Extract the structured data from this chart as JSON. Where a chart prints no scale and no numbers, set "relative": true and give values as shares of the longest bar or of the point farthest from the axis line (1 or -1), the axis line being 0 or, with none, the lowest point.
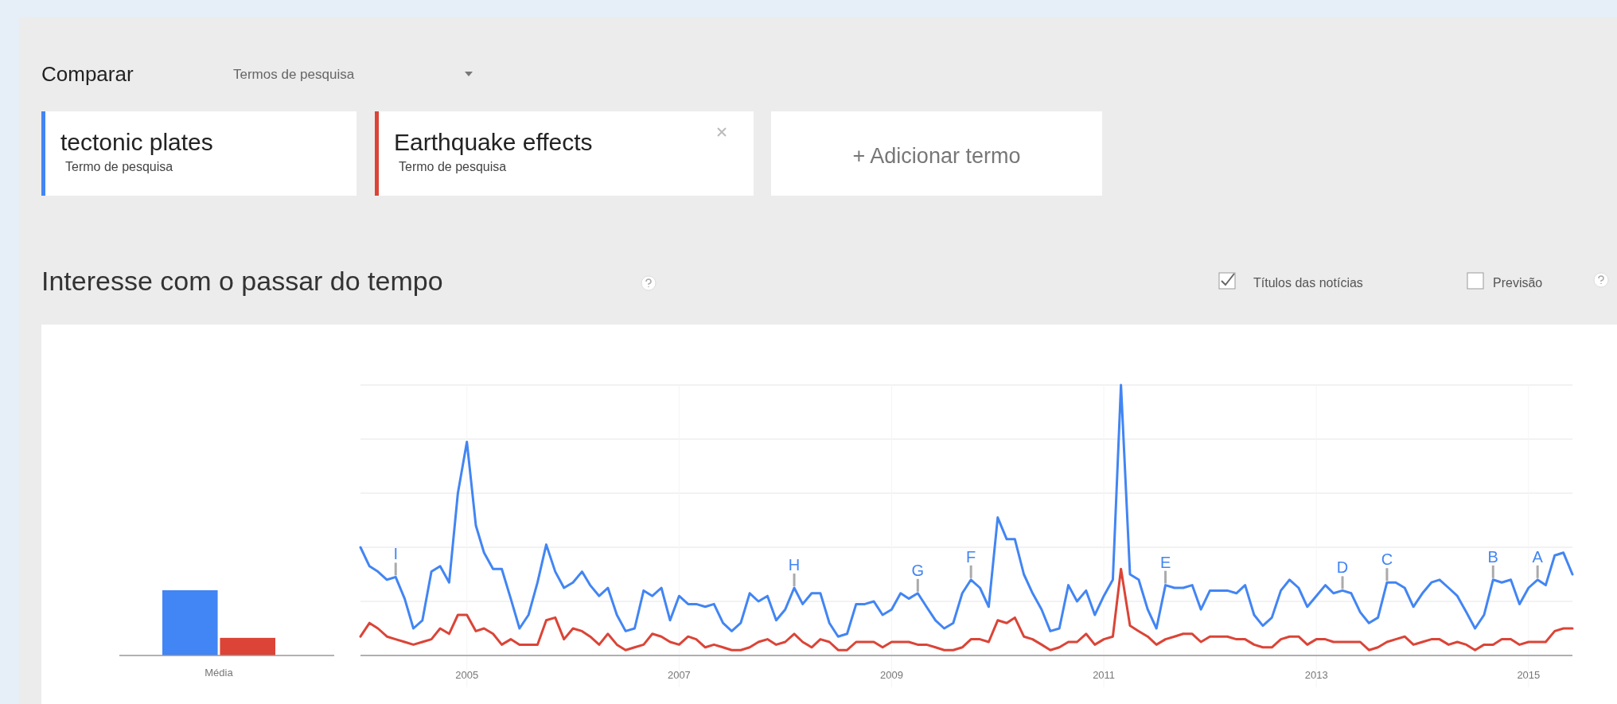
{
  "chart_data": [
    {
      "type": "line",
      "title": "Interesse com o passar do tempo",
      "relative": true,
      "grid": true,
      "legend": "top left",
      "marker": "none",
      "line_style": "solid",
      "x": [
        "2004-01",
        "2004-02",
        "2004-03",
        "2004-04",
        "2004-05",
        "2004-06",
        "2004-07",
        "2004-08",
        "2004-09",
        "2004-10",
        "2004-11",
        "2004-12",
        "2005-01",
        "2005-02",
        "2005-03",
        "2005-04",
        "2005-05",
        "2005-06",
        "2005-07",
        "2005-08",
        "2005-09",
        "2005-10",
        "2005-11",
        "2005-12",
        "2006-01",
        "2006-02",
        "2006-03",
        "2006-04",
        "2006-05",
        "2006-06",
        "2006-07",
        "2006-08",
        "2006-09",
        "2006-10",
        "2006-11",
        "2006-12",
        "2007-01",
        "2007-02",
        "2007-03",
        "2007-04",
        "2007-05",
        "2007-06",
        "2007-07",
        "2007-08",
        "2007-09",
        "2007-10",
        "2007-11",
        "2007-12",
        "2008-01",
        "2008-02",
        "2008-03",
        "2008-04",
        "2008-05",
        "2008-06",
        "2008-07",
        "2008-08",
        "2008-09",
        "2008-10",
        "2008-11",
        "2008-12",
        "2009-01",
        "2009-02",
        "2009-03",
        "2009-04",
        "2009-05",
        "2009-06",
        "2009-07",
        "2009-08",
        "2009-09",
        "2009-10",
        "2009-11",
        "2009-12",
        "2010-01",
        "2010-02",
        "2010-03",
        "2010-04",
        "2010-05",
        "2010-06",
        "2010-07",
        "2010-08",
        "2010-09",
        "2010-10",
        "2010-11",
        "2010-12",
        "2011-01",
        "2011-02",
        "2011-03",
        "2011-04",
        "2011-05",
        "2011-06",
        "2011-07",
        "2011-08",
        "2011-09",
        "2011-10",
        "2011-11",
        "2011-12",
        "2012-01",
        "2012-02",
        "2012-03",
        "2012-04",
        "2012-05",
        "2012-06",
        "2012-07",
        "2012-08",
        "2012-09",
        "2012-10",
        "2012-11",
        "2012-12",
        "2013-01",
        "2013-02",
        "2013-03",
        "2013-04",
        "2013-05",
        "2013-06",
        "2013-07",
        "2013-08",
        "2013-09",
        "2013-10",
        "2013-11",
        "2013-12",
        "2014-01",
        "2014-02",
        "2014-03",
        "2014-04",
        "2014-05",
        "2014-06",
        "2014-07",
        "2014-08",
        "2014-09",
        "2014-10",
        "2014-11",
        "2014-12",
        "2015-01",
        "2015-02",
        "2015-03",
        "2015-04",
        "2015-05",
        "2015-06"
      ],
      "xlim": [
        "2004-01",
        "2015-06"
      ],
      "xticks": [
        "2005",
        "2007",
        "2009",
        "2011",
        "2013",
        "2015"
      ],
      "series": [
        {
          "name": "tectonic plates",
          "color": "#4285f4",
          "values": [
            0.4,
            0.33,
            0.31,
            0.28,
            0.29,
            0.21,
            0.1,
            0.13,
            0.31,
            0.33,
            0.27,
            0.6,
            0.79,
            0.48,
            0.38,
            0.32,
            0.32,
            0.21,
            0.1,
            0.15,
            0.27,
            0.41,
            0.31,
            0.25,
            0.27,
            0.31,
            0.26,
            0.22,
            0.25,
            0.15,
            0.09,
            0.1,
            0.24,
            0.22,
            0.25,
            0.13,
            0.22,
            0.19,
            0.19,
            0.18,
            0.19,
            0.12,
            0.09,
            0.12,
            0.23,
            0.2,
            0.22,
            0.13,
            0.17,
            0.25,
            0.19,
            0.23,
            0.23,
            0.12,
            0.07,
            0.08,
            0.19,
            0.19,
            0.2,
            0.15,
            0.17,
            0.23,
            0.21,
            0.23,
            0.18,
            0.13,
            0.1,
            0.12,
            0.23,
            0.28,
            0.25,
            0.18,
            0.51,
            0.43,
            0.43,
            0.3,
            0.23,
            0.17,
            0.09,
            0.1,
            0.26,
            0.2,
            0.24,
            0.15,
            0.22,
            0.28,
            1.0,
            0.3,
            0.28,
            0.17,
            0.1,
            0.26,
            0.25,
            0.25,
            0.26,
            0.17,
            0.24,
            0.24,
            0.24,
            0.23,
            0.26,
            0.15,
            0.11,
            0.14,
            0.24,
            0.28,
            0.25,
            0.18,
            0.22,
            0.26,
            0.23,
            0.24,
            0.23,
            0.16,
            0.12,
            0.14,
            0.27,
            0.27,
            0.25,
            0.18,
            0.23,
            0.27,
            0.28,
            0.25,
            0.22,
            0.16,
            0.1,
            0.15,
            0.28,
            0.27,
            0.28,
            0.19,
            0.25,
            0.28,
            0.26,
            0.37,
            0.38,
            0.3
          ]
        },
        {
          "name": "Earthquake effects",
          "color": "#db4437",
          "values": [
            0.07,
            0.12,
            0.1,
            0.07,
            0.06,
            0.05,
            0.04,
            0.05,
            0.06,
            0.1,
            0.08,
            0.15,
            0.15,
            0.09,
            0.1,
            0.08,
            0.04,
            0.06,
            0.04,
            0.04,
            0.04,
            0.13,
            0.14,
            0.06,
            0.1,
            0.09,
            0.07,
            0.04,
            0.08,
            0.04,
            0.02,
            0.03,
            0.04,
            0.08,
            0.07,
            0.05,
            0.04,
            0.07,
            0.06,
            0.03,
            0.04,
            0.03,
            0.02,
            0.02,
            0.03,
            0.05,
            0.06,
            0.04,
            0.05,
            0.08,
            0.05,
            0.03,
            0.06,
            0.05,
            0.02,
            0.02,
            0.05,
            0.05,
            0.05,
            0.03,
            0.05,
            0.05,
            0.05,
            0.04,
            0.04,
            0.03,
            0.02,
            0.02,
            0.03,
            0.06,
            0.06,
            0.05,
            0.13,
            0.12,
            0.14,
            0.07,
            0.06,
            0.04,
            0.02,
            0.03,
            0.05,
            0.05,
            0.08,
            0.04,
            0.06,
            0.07,
            0.32,
            0.11,
            0.09,
            0.07,
            0.04,
            0.06,
            0.07,
            0.08,
            0.08,
            0.05,
            0.07,
            0.07,
            0.07,
            0.06,
            0.06,
            0.04,
            0.03,
            0.03,
            0.06,
            0.07,
            0.07,
            0.04,
            0.06,
            0.06,
            0.05,
            0.05,
            0.05,
            0.05,
            0.02,
            0.03,
            0.05,
            0.06,
            0.07,
            0.04,
            0.05,
            0.06,
            0.06,
            0.04,
            0.05,
            0.04,
            0.02,
            0.04,
            0.04,
            0.06,
            0.06,
            0.04,
            0.05,
            0.05,
            0.05,
            0.09,
            0.1,
            0.1
          ]
        }
      ],
      "annotations": [
        "Comparar",
        "Termos de pesquisa",
        "Termo de pesquisa",
        "Termo de pesquisa",
        "+ Adicionar termo",
        "Títulos das notícias",
        "Previsão",
        {
          "text": "I",
          "x": "2004-05",
          "y": 0.29
        },
        {
          "text": "H",
          "x": "2008-02",
          "y": 0.25
        },
        {
          "text": "G",
          "x": "2009-04",
          "y": 0.23
        },
        {
          "text": "F",
          "x": "2009-10",
          "y": 0.28
        },
        {
          "text": "E",
          "x": "2011-08",
          "y": 0.26
        },
        {
          "text": "D",
          "x": "2013-04",
          "y": 0.24
        },
        {
          "text": "C",
          "x": "2013-09",
          "y": 0.27
        },
        {
          "text": "B",
          "x": "2014-09",
          "y": 0.28
        },
        {
          "text": "A",
          "x": "2015-02",
          "y": 0.28
        }
      ]
    },
    {
      "type": "bar",
      "relative": true,
      "xlabel": "Média",
      "categories": [
        null,
        null
      ],
      "values": [
        1,
        0.27
      ],
      "colors": [
        "#4285f4",
        "#db4437"
      ]
    }
  ]
}
